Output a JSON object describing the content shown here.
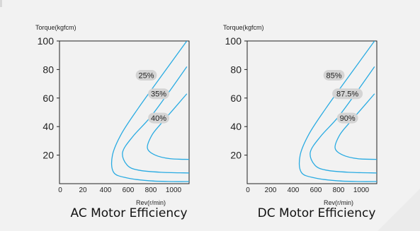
{
  "chart_data": [
    {
      "type": "line",
      "caption": "AC Motor Efficiency",
      "ylabel": "Torque(kgfcm)",
      "xlabel": "Rev(r/min)",
      "xticks": [
        0,
        20,
        400,
        600,
        800,
        1000
      ],
      "yticks": [
        20,
        40,
        60,
        80,
        100
      ],
      "xlim": [
        0,
        1150
      ],
      "ylim": [
        0,
        100
      ],
      "line_color": "#29abe2",
      "label_bg": "#d4d4d4",
      "series": [
        {
          "name": "25%",
          "values": [
            [
              1130,
              100
            ],
            [
              900,
              75
            ],
            [
              700,
              53
            ],
            [
              550,
              35
            ],
            [
              470,
              20
            ],
            [
              480,
              8
            ],
            [
              600,
              4
            ],
            [
              800,
              2
            ],
            [
              1000,
              1.5
            ],
            [
              1150,
              1.5
            ]
          ]
        },
        {
          "name": "35%",
          "values": [
            [
              1130,
              82
            ],
            [
              960,
              63
            ],
            [
              800,
              46
            ],
            [
              650,
              33
            ],
            [
              560,
              22
            ],
            [
              600,
              13
            ],
            [
              700,
              9.5
            ],
            [
              900,
              8
            ],
            [
              1150,
              7.5
            ]
          ]
        },
        {
          "name": "40%",
          "values": [
            [
              1130,
              63
            ],
            [
              1010,
              52
            ],
            [
              900,
              42
            ],
            [
              820,
              34
            ],
            [
              780,
              25
            ],
            [
              850,
              20
            ],
            [
              980,
              17.5
            ],
            [
              1150,
              17
            ]
          ]
        }
      ],
      "labels": [
        {
          "text": "25%",
          "x": 770,
          "y": 76
        },
        {
          "text": "35%",
          "x": 880,
          "y": 63
        },
        {
          "text": "40%",
          "x": 880,
          "y": 46
        }
      ]
    },
    {
      "type": "line",
      "caption": "DC Motor Efficiency",
      "ylabel": "Torque(kgfcm)",
      "xlabel": "Rev(r/min)",
      "xticks": [
        0,
        200,
        400,
        600,
        800,
        1000
      ],
      "yticks": [
        20,
        40,
        60,
        80,
        100
      ],
      "xlim": [
        0,
        1150
      ],
      "ylim": [
        0,
        100
      ],
      "line_color": "#29abe2",
      "label_bg": "#d4d4d4",
      "series": [
        {
          "name": "85%",
          "values": [
            [
              1130,
              100
            ],
            [
              900,
              75
            ],
            [
              700,
              53
            ],
            [
              550,
              35
            ],
            [
              470,
              20
            ],
            [
              480,
              8
            ],
            [
              600,
              4
            ],
            [
              800,
              2
            ],
            [
              1000,
              1.5
            ],
            [
              1150,
              1.5
            ]
          ]
        },
        {
          "name": "87.5%",
          "values": [
            [
              1130,
              82
            ],
            [
              960,
              63
            ],
            [
              800,
              46
            ],
            [
              650,
              33
            ],
            [
              560,
              22
            ],
            [
              600,
              13
            ],
            [
              700,
              9.5
            ],
            [
              900,
              8
            ],
            [
              1150,
              7.5
            ]
          ]
        },
        {
          "name": "90%",
          "values": [
            [
              1130,
              63
            ],
            [
              1010,
              52
            ],
            [
              900,
              42
            ],
            [
              820,
              34
            ],
            [
              780,
              25
            ],
            [
              850,
              20
            ],
            [
              980,
              17.5
            ],
            [
              1150,
              17
            ]
          ]
        }
      ],
      "labels": [
        {
          "text": "85%",
          "x": 770,
          "y": 76
        },
        {
          "text": "87.5%",
          "x": 890,
          "y": 63
        },
        {
          "text": "90%",
          "x": 890,
          "y": 46
        }
      ]
    }
  ]
}
